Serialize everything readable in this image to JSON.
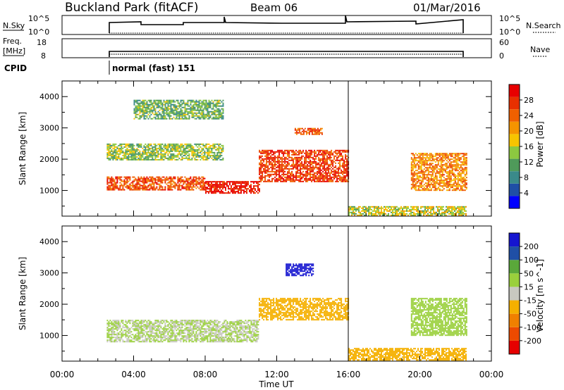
{
  "header": {
    "station": "Buckland Park (fitACF)",
    "beam": "Beam 06",
    "date": "01/Mar/2016"
  },
  "status_panels": {
    "nsky_label": "N.Sky",
    "nsky_ticks": [
      "10^5",
      "10^0"
    ],
    "nsearch_label": "N.Search",
    "nsearch_ticks": [
      "10^5",
      "10^0"
    ],
    "freq_label": "Freq.",
    "freq_unit": "[MHz]",
    "freq_ticks": [
      "18",
      "8"
    ],
    "nave_label": "Nave",
    "nave_ticks": [
      "60",
      "0"
    ],
    "cpid_label": "CPID",
    "cpid_value": "normal (fast) 151"
  },
  "colors": {
    "power_scale": [
      "#0000ff",
      "#1f4fa6",
      "#3a8a8a",
      "#4f9a5a",
      "#8cc840",
      "#f7c400",
      "#f59400",
      "#f06000",
      "#e83000",
      "#e80000"
    ],
    "velocity_scale": [
      "#1515d0",
      "#1f4fa6",
      "#5aa83a",
      "#9ad03c",
      "#c8c8c0",
      "#f5b000",
      "#f08000",
      "#ec4a00",
      "#e60000"
    ]
  },
  "chart_data": [
    {
      "type": "heatmap",
      "quantity": "Power",
      "ylabel": "Slant Range [km]",
      "ylim": [
        180,
        4500
      ],
      "yticks": [
        "1000",
        "2000",
        "3000",
        "4000"
      ],
      "xlim_hours": [
        0,
        24
      ],
      "colorbar_label": "Power [dB]",
      "colorbar_ticks": [
        "4",
        "8",
        "12",
        "16",
        "20",
        "24",
        "28"
      ],
      "colorbar_range": [
        0,
        32
      ],
      "data_coverage_hours": [
        2.5,
        22.6
      ],
      "echo_bands": [
        {
          "start_h": 2.5,
          "end_h": 8.0,
          "range_km": [
            1000,
            1450
          ],
          "power_db": 26
        },
        {
          "start_h": 8.0,
          "end_h": 11.0,
          "range_km": [
            900,
            1300
          ],
          "power_db": 30
        },
        {
          "start_h": 11.0,
          "end_h": 16.0,
          "range_km": [
            1300,
            2300
          ],
          "power_db": 27
        },
        {
          "start_h": 2.5,
          "end_h": 9.0,
          "range_km": [
            2000,
            2500
          ],
          "power_db": 14
        },
        {
          "start_h": 4.0,
          "end_h": 9.0,
          "range_km": [
            3300,
            3900
          ],
          "power_db": 12
        },
        {
          "start_h": 13.0,
          "end_h": 14.5,
          "range_km": [
            2800,
            3000
          ],
          "power_db": 25
        },
        {
          "start_h": 19.5,
          "end_h": 22.6,
          "range_km": [
            1000,
            2200
          ],
          "power_db": 22
        },
        {
          "start_h": 16.0,
          "end_h": 22.6,
          "range_km": [
            200,
            500
          ],
          "power_db": 16
        }
      ]
    },
    {
      "type": "heatmap",
      "quantity": "Velocity",
      "ylabel": "Slant Range [km]",
      "ylim": [
        180,
        4500
      ],
      "yticks": [
        "1000",
        "2000",
        "3000",
        "4000"
      ],
      "xlabel": "Time UT",
      "xticks": [
        "00:00",
        "04:00",
        "08:00",
        "12:00",
        "16:00",
        "20:00",
        "00:00"
      ],
      "xlim_hours": [
        0,
        24
      ],
      "colorbar_label": "Velocity [m s^-1]",
      "colorbar_ticks": [
        "200",
        "100",
        "50",
        "15",
        "-15",
        "-50",
        "-100",
        "-200"
      ],
      "data_coverage_hours": [
        2.5,
        22.6
      ],
      "echo_bands": [
        {
          "start_h": 2.5,
          "end_h": 11.0,
          "range_km": [
            800,
            1500
          ],
          "velocity": 0
        },
        {
          "start_h": 11.0,
          "end_h": 16.0,
          "range_km": [
            1500,
            2200
          ],
          "velocity": -40
        },
        {
          "start_h": 12.5,
          "end_h": 14.0,
          "range_km": [
            2900,
            3300
          ],
          "velocity": 200
        },
        {
          "start_h": 19.5,
          "end_h": 22.6,
          "range_km": [
            1000,
            2200
          ],
          "velocity": 5
        },
        {
          "start_h": 16.0,
          "end_h": 22.6,
          "range_km": [
            200,
            600
          ],
          "velocity": -40
        }
      ]
    }
  ]
}
